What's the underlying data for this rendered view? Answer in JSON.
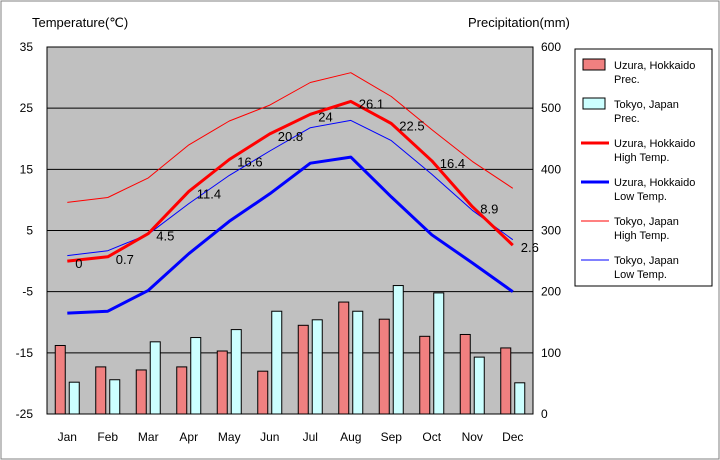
{
  "chart_data": {
    "type": "bar+line",
    "categories": [
      "Jan",
      "Feb",
      "Mar",
      "Apr",
      "May",
      "Jun",
      "Jul",
      "Aug",
      "Sep",
      "Oct",
      "Nov",
      "Dec"
    ],
    "left_axis": {
      "title": "Temperature(℃)",
      "min": -25,
      "max": 35,
      "ticks": [
        -25,
        -15,
        -5,
        5,
        15,
        25,
        35
      ]
    },
    "right_axis": {
      "title": "Precipitation(mm)",
      "min": 0,
      "max": 600,
      "ticks": [
        0,
        100,
        200,
        300,
        400,
        500,
        600
      ]
    },
    "grid": true,
    "bar_series": [
      {
        "key": "uzura_prec",
        "name_line1": "Uzura, Hokkaido",
        "name_line2": "Prec.",
        "color": "#f08080",
        "values": [
          112,
          77,
          72,
          77,
          103,
          70,
          145,
          183,
          155,
          127,
          130,
          108
        ]
      },
      {
        "key": "tokyo_prec",
        "name_line1": "Tokyo, Japan",
        "name_line2": "Prec.",
        "color": "#ccffff",
        "values": [
          52,
          56,
          118,
          125,
          138,
          168,
          154,
          168,
          210,
          198,
          93,
          51
        ]
      }
    ],
    "line_series": [
      {
        "key": "uzura_high",
        "name_line1": "Uzura, Hokkaido",
        "name_line2": "High Temp.",
        "color": "#ff0000",
        "width": 3,
        "values": [
          0,
          0.7,
          4.5,
          11.4,
          16.6,
          20.8,
          24,
          26.1,
          22.5,
          16.4,
          8.9,
          2.6
        ],
        "labels": [
          "0",
          "0.7",
          "4.5",
          "11.4",
          "16.6",
          "20.8",
          "24",
          "26.1",
          "22.5",
          "16.4",
          "8.9",
          "2.6"
        ]
      },
      {
        "key": "uzura_low",
        "name_line1": "Uzura, Hokkaido",
        "name_line2": "Low Temp.",
        "color": "#0000ff",
        "width": 3,
        "values": [
          -8.5,
          -8.2,
          -4.8,
          1.2,
          6.5,
          11.0,
          16.0,
          17.0,
          10.5,
          4.3,
          -0.3,
          -5.0
        ]
      },
      {
        "key": "tokyo_high",
        "name_line1": "Tokyo, Japan",
        "name_line2": "High Temp.",
        "color": "#ff0000",
        "width": 1,
        "values": [
          9.6,
          10.4,
          13.6,
          19.0,
          22.9,
          25.5,
          29.2,
          30.8,
          26.9,
          21.5,
          16.3,
          11.9
        ]
      },
      {
        "key": "tokyo_low",
        "name_line1": "Tokyo, Japan",
        "name_line2": "Low Temp.",
        "color": "#0000ff",
        "width": 1,
        "values": [
          0.9,
          1.7,
          4.4,
          9.4,
          14.0,
          18.0,
          21.8,
          23.0,
          19.7,
          14.2,
          8.3,
          3.5
        ]
      }
    ]
  }
}
